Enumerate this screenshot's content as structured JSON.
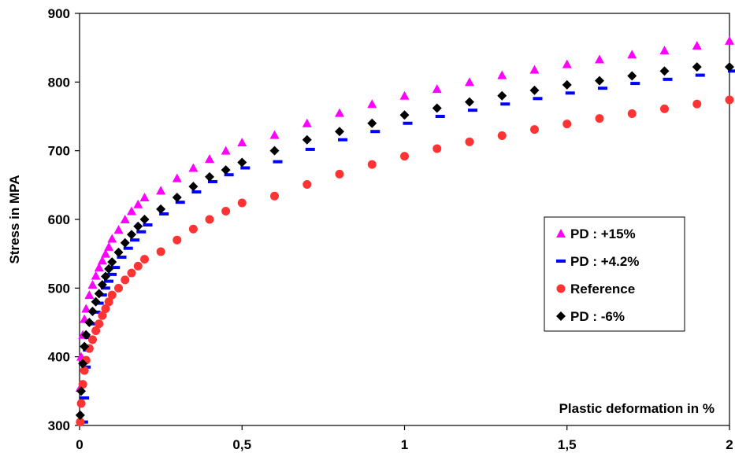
{
  "chart_data": {
    "type": "scatter",
    "xlabel": "Plastic deformation in %",
    "ylabel": "Stress in MPA",
    "xlim": [
      0,
      2
    ],
    "ylim": [
      300,
      900
    ],
    "x_ticks": [
      "0",
      "0,5",
      "1",
      "1,5",
      "2"
    ],
    "y_ticks": [
      "300",
      "400",
      "500",
      "600",
      "700",
      "800",
      "900"
    ],
    "grid": false,
    "legend_position": "right",
    "x": [
      0.002,
      0.005,
      0.01,
      0.015,
      0.02,
      0.03,
      0.04,
      0.05,
      0.06,
      0.07,
      0.08,
      0.09,
      0.1,
      0.12,
      0.14,
      0.16,
      0.18,
      0.2,
      0.25,
      0.3,
      0.35,
      0.4,
      0.45,
      0.5,
      0.6,
      0.7,
      0.8,
      0.9,
      1.0,
      1.1,
      1.2,
      1.3,
      1.4,
      1.5,
      1.6,
      1.7,
      1.8,
      1.9,
      2.0
    ],
    "series": [
      {
        "name": "PD : +15%",
        "color": "#ff00ff",
        "marker": "triangle",
        "values": [
          355,
          400,
          432,
          455,
          470,
          490,
          505,
          518,
          530,
          540,
          550,
          560,
          572,
          585,
          600,
          612,
          622,
          632,
          642,
          660,
          675,
          688,
          700,
          712,
          723,
          740,
          755,
          768,
          780,
          790,
          800,
          810,
          818,
          826,
          833,
          840,
          846,
          853,
          860
        ]
      },
      {
        "name": "PD : +4.2%",
        "color": "#0000ff",
        "marker": "dash",
        "values": [
          305,
          340,
          385,
          410,
          428,
          448,
          465,
          478,
          490,
          500,
          510,
          520,
          530,
          545,
          558,
          570,
          582,
          592,
          608,
          625,
          640,
          655,
          665,
          675,
          684,
          702,
          716,
          728,
          740,
          750,
          759,
          768,
          776,
          784,
          791,
          798,
          804,
          810,
          816
        ]
      },
      {
        "name": "Reference",
        "color": "#ff3333",
        "marker": "circle",
        "values": [
          305,
          332,
          360,
          380,
          395,
          412,
          425,
          438,
          448,
          460,
          470,
          480,
          490,
          500,
          512,
          522,
          532,
          542,
          553,
          570,
          586,
          600,
          612,
          624,
          634,
          651,
          666,
          680,
          692,
          703,
          713,
          722,
          731,
          739,
          747,
          754,
          761,
          768,
          774
        ]
      },
      {
        "name": "PD : -6%",
        "color": "#000000",
        "marker": "diamond",
        "values": [
          315,
          350,
          390,
          415,
          432,
          450,
          466,
          480,
          492,
          505,
          517,
          528,
          538,
          552,
          566,
          578,
          590,
          600,
          615,
          632,
          648,
          662,
          672,
          683,
          700,
          716,
          728,
          740,
          752,
          762,
          771,
          780,
          788,
          796,
          802,
          809,
          816,
          822,
          822
        ]
      }
    ]
  }
}
